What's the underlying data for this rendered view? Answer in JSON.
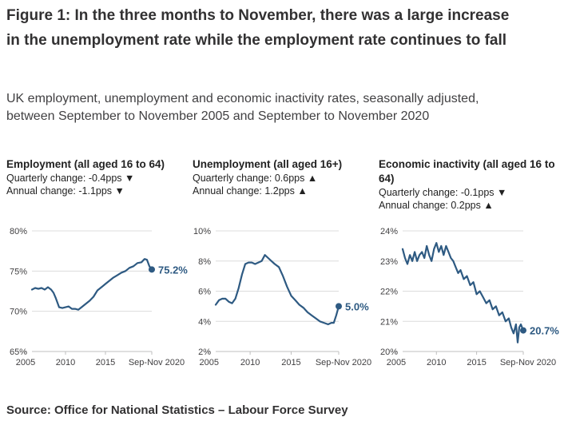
{
  "figure": {
    "title": "Figure 1: In the three months to November, there was a large increase in the unemployment rate while the employment rate continues to fall",
    "subtitle": "UK employment, unemployment and economic inactivity rates, seasonally adjusted, between September to November 2005 and September to November 2020",
    "source": "Source: Office for National Statistics – Labour Force Survey"
  },
  "colors": {
    "line": "#2e5a82",
    "label": "#2e5a82",
    "grid": "#dcdcdc",
    "axis": "#bfbfbf",
    "text": "#414042"
  },
  "chart_data": [
    {
      "type": "line",
      "title": "Employment (all aged 16 to 64)",
      "quarterly_change": "Quarterly change: -0.4pps ▼",
      "annual_change": "Annual change: -1.1pps ▼",
      "ylim": [
        65,
        80
      ],
      "yticks": [
        80,
        75,
        70,
        65
      ],
      "ytick_labels": [
        "80%",
        "75%",
        "70%",
        "65%"
      ],
      "xlim": [
        2005.8,
        2020.8
      ],
      "xticks": [
        2005,
        2010,
        2015,
        2020.8
      ],
      "xtick_labels": [
        "2005",
        "2010",
        "2015",
        "Sep-Nov 2020"
      ],
      "end_label": "75.2%",
      "x": [
        2005.8,
        2006.2,
        2006.6,
        2007.0,
        2007.4,
        2007.8,
        2008.2,
        2008.5,
        2008.8,
        2009.2,
        2009.6,
        2010.0,
        2010.4,
        2010.8,
        2011.2,
        2011.6,
        2012.0,
        2012.5,
        2013.0,
        2013.5,
        2014.0,
        2014.5,
        2015.0,
        2015.5,
        2016.0,
        2016.5,
        2017.0,
        2017.5,
        2018.0,
        2018.5,
        2019.0,
        2019.5,
        2019.9,
        2020.2,
        2020.5,
        2020.8
      ],
      "values": [
        72.7,
        72.9,
        72.8,
        72.9,
        72.7,
        73.0,
        72.7,
        72.3,
        71.6,
        70.5,
        70.4,
        70.5,
        70.6,
        70.3,
        70.3,
        70.2,
        70.5,
        70.9,
        71.3,
        71.8,
        72.6,
        73.0,
        73.4,
        73.8,
        74.2,
        74.5,
        74.8,
        75.0,
        75.4,
        75.6,
        76.0,
        76.1,
        76.5,
        76.4,
        75.6,
        75.2
      ]
    },
    {
      "type": "line",
      "title": "Unemployment (all aged 16+)",
      "quarterly_change": "Quarterly change: 0.6pps ▲",
      "annual_change": "Annual change: 1.2pps ▲",
      "ylim": [
        2,
        10
      ],
      "yticks": [
        10,
        8,
        6,
        4,
        2
      ],
      "ytick_labels": [
        "10%",
        "8%",
        "6%",
        "4%",
        "2%"
      ],
      "xlim": [
        2005.8,
        2020.8
      ],
      "xticks": [
        2005,
        2010,
        2015,
        2020.8
      ],
      "xtick_labels": [
        "2005",
        "2010",
        "2015",
        "Sep-Nov 2020"
      ],
      "end_label": "5.0%",
      "x": [
        2005.8,
        2006.2,
        2006.6,
        2007.0,
        2007.4,
        2007.8,
        2008.2,
        2008.6,
        2009.0,
        2009.4,
        2009.8,
        2010.2,
        2010.6,
        2011.0,
        2011.4,
        2011.8,
        2012.2,
        2012.6,
        2013.0,
        2013.5,
        2014.0,
        2014.5,
        2015.0,
        2015.5,
        2016.0,
        2016.5,
        2017.0,
        2017.5,
        2018.0,
        2018.5,
        2019.0,
        2019.5,
        2019.9,
        2020.2,
        2020.5,
        2020.8
      ],
      "values": [
        5.1,
        5.4,
        5.5,
        5.5,
        5.3,
        5.2,
        5.5,
        6.2,
        7.1,
        7.8,
        7.9,
        7.9,
        7.8,
        7.9,
        8.0,
        8.4,
        8.2,
        8.0,
        7.8,
        7.6,
        7.0,
        6.3,
        5.7,
        5.4,
        5.1,
        4.9,
        4.6,
        4.4,
        4.2,
        4.0,
        3.9,
        3.8,
        3.9,
        3.9,
        4.4,
        5.0
      ]
    },
    {
      "type": "line",
      "title": "Economic inactivity (all aged 16 to 64)",
      "quarterly_change": "Quarterly change: -0.1pps ▼",
      "annual_change": "Annual change: 0.2pps ▲",
      "ylim": [
        20,
        24
      ],
      "yticks": [
        24,
        23,
        22,
        21,
        20
      ],
      "ytick_labels": [
        "24%",
        "23%",
        "22%",
        "21%",
        "20%"
      ],
      "xlim": [
        2005.8,
        2020.8
      ],
      "xticks": [
        2005,
        2010,
        2015,
        2020.8
      ],
      "xtick_labels": [
        "2005",
        "2010",
        "2015",
        "Sep-Nov 2020"
      ],
      "end_label": "20.7%",
      "x": [
        2005.8,
        2006.1,
        2006.4,
        2006.7,
        2007.0,
        2007.3,
        2007.6,
        2007.9,
        2008.2,
        2008.5,
        2008.8,
        2009.1,
        2009.4,
        2009.7,
        2010.0,
        2010.3,
        2010.6,
        2010.9,
        2011.2,
        2011.5,
        2011.8,
        2012.1,
        2012.4,
        2012.7,
        2013.0,
        2013.4,
        2013.8,
        2014.2,
        2014.6,
        2015.0,
        2015.4,
        2015.8,
        2016.2,
        2016.6,
        2017.0,
        2017.4,
        2017.8,
        2018.2,
        2018.6,
        2019.0,
        2019.3,
        2019.6,
        2019.9,
        2020.1,
        2020.3,
        2020.5,
        2020.8
      ],
      "values": [
        23.4,
        23.1,
        22.9,
        23.2,
        23.0,
        23.3,
        23.0,
        23.2,
        23.3,
        23.1,
        23.5,
        23.2,
        23.0,
        23.4,
        23.6,
        23.3,
        23.5,
        23.2,
        23.5,
        23.3,
        23.1,
        23.0,
        22.8,
        22.6,
        22.7,
        22.4,
        22.5,
        22.2,
        22.3,
        21.9,
        22.0,
        21.8,
        21.6,
        21.7,
        21.4,
        21.5,
        21.2,
        21.3,
        21.0,
        21.1,
        20.8,
        20.6,
        20.9,
        20.3,
        20.8,
        20.9,
        20.7
      ]
    }
  ]
}
